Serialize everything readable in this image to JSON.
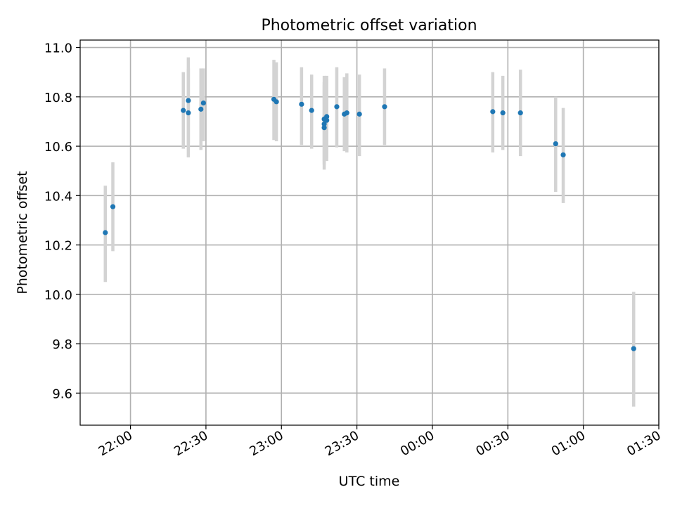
{
  "chart_data": {
    "type": "scatter",
    "title": "Photometric offset variation",
    "xlabel": "UTC time",
    "ylabel": "Photometric offset",
    "grid": true,
    "legend": "none",
    "colors": {
      "points": "#1f77b4",
      "errorbars": "#d3d3d3",
      "grid": "#b0b0b0"
    },
    "xlim": [
      "21:40",
      "01:30"
    ],
    "ylim": [
      9.47,
      11.03
    ],
    "x_ticks": [
      "22:00",
      "22:30",
      "23:00",
      "23:30",
      "00:00",
      "00:30",
      "01:00",
      "01:30"
    ],
    "y_ticks": [
      "9.6",
      "9.8",
      "10.0",
      "10.2",
      "10.4",
      "10.6",
      "10.8",
      "11.0"
    ],
    "series": [
      {
        "points": [
          {
            "x": "21:50",
            "y": 10.25,
            "ymin": 10.05,
            "ymax": 10.44
          },
          {
            "x": "21:53",
            "y": 10.355,
            "ymin": 10.175,
            "ymax": 10.535
          },
          {
            "x": "22:21",
            "y": 10.745,
            "ymin": 10.59,
            "ymax": 10.9
          },
          {
            "x": "22:23",
            "y": 10.785,
            "ymin": 10.61,
            "ymax": 10.96
          },
          {
            "x": "22:23",
            "y": 10.735,
            "ymin": 10.555,
            "ymax": 10.915
          },
          {
            "x": "22:28",
            "y": 10.75,
            "ymin": 10.585,
            "ymax": 10.915
          },
          {
            "x": "22:29",
            "y": 10.775,
            "ymin": 10.62,
            "ymax": 10.915
          },
          {
            "x": "22:57",
            "y": 10.79,
            "ymin": 10.625,
            "ymax": 10.95
          },
          {
            "x": "22:58",
            "y": 10.78,
            "ymin": 10.62,
            "ymax": 10.94
          },
          {
            "x": "23:08",
            "y": 10.77,
            "ymin": 10.605,
            "ymax": 10.92
          },
          {
            "x": "23:12",
            "y": 10.745,
            "ymin": 10.59,
            "ymax": 10.89
          },
          {
            "x": "23:17",
            "y": 10.69,
            "ymin": 10.525,
            "ymax": 10.86
          },
          {
            "x": "23:17",
            "y": 10.675,
            "ymin": 10.505,
            "ymax": 10.85
          },
          {
            "x": "23:17",
            "y": 10.71,
            "ymin": 10.54,
            "ymax": 10.885
          },
          {
            "x": "23:18",
            "y": 10.72,
            "ymin": 10.555,
            "ymax": 10.885
          },
          {
            "x": "23:18",
            "y": 10.705,
            "ymin": 10.54,
            "ymax": 10.87
          },
          {
            "x": "23:22",
            "y": 10.76,
            "ymin": 10.595,
            "ymax": 10.92
          },
          {
            "x": "23:25",
            "y": 10.73,
            "ymin": 10.58,
            "ymax": 10.88
          },
          {
            "x": "23:26",
            "y": 10.735,
            "ymin": 10.575,
            "ymax": 10.895
          },
          {
            "x": "23:31",
            "y": 10.73,
            "ymin": 10.56,
            "ymax": 10.89
          },
          {
            "x": "23:41",
            "y": 10.76,
            "ymin": 10.605,
            "ymax": 10.915
          },
          {
            "x": "00:24",
            "y": 10.74,
            "ymin": 10.575,
            "ymax": 10.9
          },
          {
            "x": "00:28",
            "y": 10.735,
            "ymin": 10.585,
            "ymax": 10.885
          },
          {
            "x": "00:35",
            "y": 10.735,
            "ymin": 10.56,
            "ymax": 10.91
          },
          {
            "x": "00:49",
            "y": 10.61,
            "ymin": 10.415,
            "ymax": 10.8
          },
          {
            "x": "00:52",
            "y": 10.565,
            "ymin": 10.37,
            "ymax": 10.755
          },
          {
            "x": "01:20",
            "y": 9.78,
            "ymin": 9.545,
            "ymax": 10.01
          }
        ]
      }
    ]
  }
}
